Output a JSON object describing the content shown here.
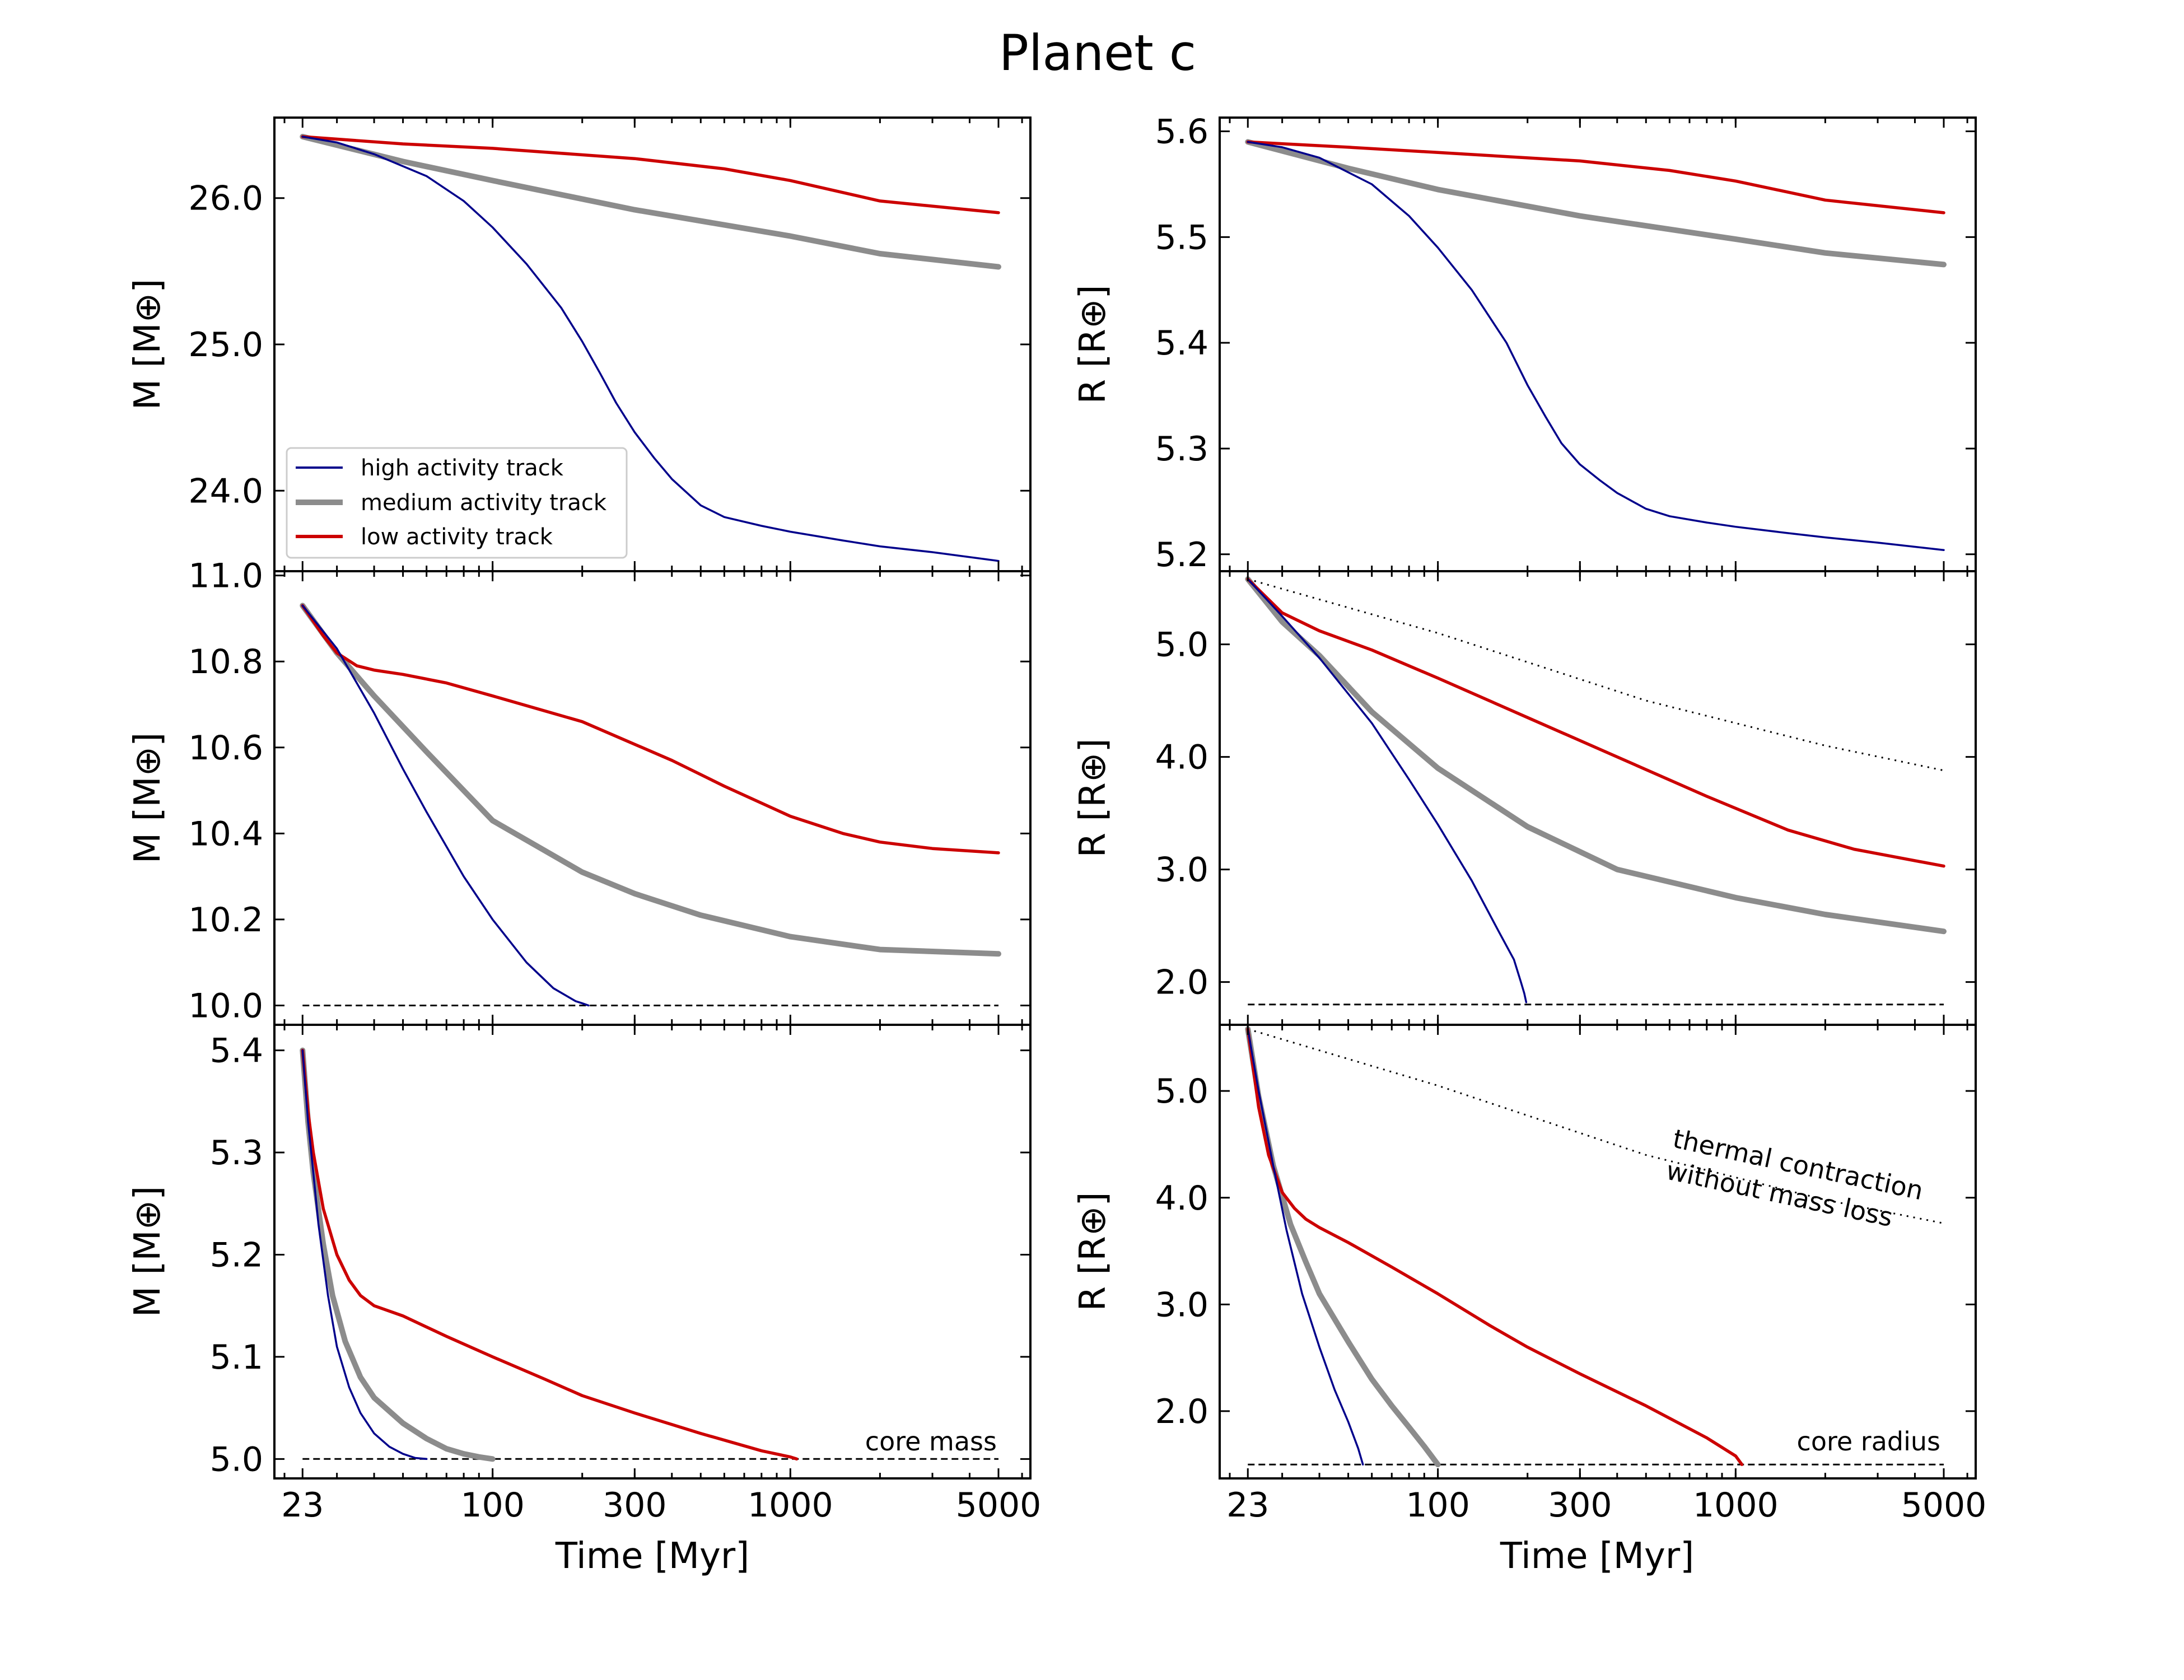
{
  "chart_data": {
    "type": "line",
    "title": "Planet c",
    "xlabel": "Time [Myr]",
    "x_scale": "log",
    "x_ticks": [
      "23",
      "100",
      "300",
      "1000",
      "5000"
    ],
    "x_tick_values": [
      23,
      100,
      300,
      1000,
      5000
    ],
    "xlim": [
      18.5,
      6400
    ],
    "colors": {
      "high": "#00008b",
      "medium": "#8c8c8c",
      "low": "#cc0000",
      "reference": "#000000"
    },
    "legend": {
      "position": "lower-left of top-left panel",
      "entries": [
        {
          "name": "high activity track",
          "color": "#00008b"
        },
        {
          "name": "medium activity track",
          "color": "#8c8c8c"
        },
        {
          "name": "low activity track",
          "color": "#cc0000"
        }
      ]
    },
    "panels": [
      {
        "id": "mass-row1",
        "ylabel": "M [M⊕]",
        "ylim": [
          23.45,
          26.55
        ],
        "y_ticks": [
          "24.0",
          "25.0",
          "26.0"
        ],
        "y_tick_values": [
          24.0,
          25.0,
          26.0
        ],
        "series": [
          {
            "name": "high activity track",
            "x": [
              23,
              30,
              40,
              60,
              80,
              100,
              130,
              170,
              200,
              230,
              260,
              300,
              350,
              400,
              500,
              600,
              800,
              1000,
              1500,
              2000,
              3000,
              5000
            ],
            "y": [
              26.42,
              26.38,
              26.3,
              26.15,
              25.98,
              25.8,
              25.55,
              25.25,
              25.02,
              24.8,
              24.6,
              24.4,
              24.22,
              24.08,
              23.9,
              23.82,
              23.76,
              23.72,
              23.66,
              23.62,
              23.58,
              23.52
            ]
          },
          {
            "name": "medium activity track",
            "x": [
              23,
              50,
              100,
              300,
              1000,
              2000,
              5000
            ],
            "y": [
              26.42,
              26.25,
              26.12,
              25.92,
              25.74,
              25.62,
              25.53
            ]
          },
          {
            "name": "low activity track",
            "x": [
              23,
              50,
              100,
              300,
              600,
              1000,
              2000,
              5000
            ],
            "y": [
              26.42,
              26.37,
              26.34,
              26.27,
              26.2,
              26.12,
              25.98,
              25.9
            ]
          }
        ]
      },
      {
        "id": "radius-row1",
        "ylabel": "R [R⊕]",
        "ylim": [
          5.184,
          5.613
        ],
        "y_ticks": [
          "5.2",
          "5.3",
          "5.4",
          "5.5",
          "5.6"
        ],
        "y_tick_values": [
          5.2,
          5.3,
          5.4,
          5.5,
          5.6
        ],
        "series": [
          {
            "name": "high activity track",
            "x": [
              23,
              30,
              40,
              60,
              80,
              100,
              130,
              170,
              200,
              230,
              260,
              300,
              350,
              400,
              500,
              600,
              800,
              1000,
              1500,
              2000,
              3000,
              5000
            ],
            "y": [
              5.59,
              5.585,
              5.575,
              5.55,
              5.52,
              5.49,
              5.45,
              5.4,
              5.36,
              5.33,
              5.305,
              5.285,
              5.27,
              5.258,
              5.243,
              5.236,
              5.23,
              5.226,
              5.22,
              5.216,
              5.211,
              5.204
            ]
          },
          {
            "name": "medium activity track",
            "x": [
              23,
              50,
              100,
              300,
              1000,
              2000,
              5000
            ],
            "y": [
              5.59,
              5.565,
              5.545,
              5.52,
              5.498,
              5.485,
              5.474
            ]
          },
          {
            "name": "low activity track",
            "x": [
              23,
              50,
              100,
              300,
              600,
              1000,
              2000,
              5000
            ],
            "y": [
              5.59,
              5.585,
              5.58,
              5.572,
              5.563,
              5.553,
              5.535,
              5.523
            ]
          }
        ]
      },
      {
        "id": "mass-row2",
        "ylabel": "M [M⊕]",
        "ylim": [
          9.955,
          11.01
        ],
        "y_ticks": [
          "10.0",
          "10.2",
          "10.4",
          "10.6",
          "10.8",
          "11.0"
        ],
        "y_tick_values": [
          10.0,
          10.2,
          10.4,
          10.6,
          10.8,
          11.0
        ],
        "series": [
          {
            "name": "high activity track",
            "x": [
              23,
              30,
              40,
              50,
              60,
              80,
              100,
              130,
              160,
              190,
              200,
              210
            ],
            "y": [
              10.93,
              10.83,
              10.68,
              10.55,
              10.45,
              10.3,
              10.2,
              10.1,
              10.04,
              10.01,
              10.005,
              10.0
            ]
          },
          {
            "name": "medium activity track",
            "x": [
              23,
              30,
              40,
              60,
              100,
              200,
              300,
              500,
              1000,
              2000,
              5000
            ],
            "y": [
              10.93,
              10.82,
              10.72,
              10.59,
              10.43,
              10.31,
              10.26,
              10.21,
              10.16,
              10.13,
              10.12
            ]
          },
          {
            "name": "low activity track",
            "x": [
              23,
              27,
              30,
              35,
              40,
              50,
              70,
              100,
              200,
              400,
              600,
              1000,
              1500,
              2000,
              3000,
              5000
            ],
            "y": [
              10.93,
              10.86,
              10.82,
              10.79,
              10.78,
              10.77,
              10.75,
              10.72,
              10.66,
              10.57,
              10.51,
              10.44,
              10.4,
              10.38,
              10.365,
              10.355
            ]
          },
          {
            "name": "core mass",
            "style": "dashed",
            "x": [
              23,
              5000
            ],
            "y": [
              10.0,
              10.0
            ]
          }
        ]
      },
      {
        "id": "radius-row2",
        "ylabel": "R [R⊕]",
        "ylim": [
          1.62,
          5.65
        ],
        "y_ticks": [
          "2.0",
          "3.0",
          "4.0",
          "5.0"
        ],
        "y_tick_values": [
          2.0,
          3.0,
          4.0,
          5.0
        ],
        "series": [
          {
            "name": "high activity track",
            "x": [
              23,
              30,
              40,
              60,
              80,
              100,
              130,
              160,
              180,
              190,
              195,
              198
            ],
            "y": [
              5.58,
              5.25,
              4.88,
              4.3,
              3.8,
              3.4,
              2.9,
              2.45,
              2.2,
              2.0,
              1.9,
              1.82
            ]
          },
          {
            "name": "medium activity track",
            "x": [
              23,
              30,
              40,
              60,
              100,
              200,
              400,
              1000,
              2000,
              5000
            ],
            "y": [
              5.58,
              5.2,
              4.9,
              4.4,
              3.9,
              3.38,
              3.0,
              2.75,
              2.6,
              2.45
            ]
          },
          {
            "name": "low activity track",
            "x": [
              23,
              30,
              40,
              60,
              100,
              200,
              400,
              800,
              1500,
              2500,
              5000
            ],
            "y": [
              5.58,
              5.28,
              5.12,
              4.95,
              4.7,
              4.35,
              4.0,
              3.65,
              3.35,
              3.18,
              3.03
            ]
          },
          {
            "name": "thermal contraction without mass loss",
            "style": "dotted",
            "x": [
              23,
              100,
              500,
              2000,
              5000
            ],
            "y": [
              5.58,
              5.1,
              4.5,
              4.1,
              3.88
            ]
          },
          {
            "name": "core radius",
            "style": "dashed",
            "x": [
              23,
              5000
            ],
            "y": [
              1.8,
              1.8
            ]
          }
        ]
      },
      {
        "id": "mass-row3",
        "ylabel": "M [M⊕]",
        "ylim": [
          4.981,
          5.425
        ],
        "y_ticks": [
          "5.0",
          "5.1",
          "5.2",
          "5.3",
          "5.4"
        ],
        "y_tick_values": [
          5.0,
          5.1,
          5.2,
          5.3,
          5.4
        ],
        "series": [
          {
            "name": "high activity track",
            "x": [
              23,
              24,
              25,
              26,
              28,
              30,
              33,
              36,
              40,
              45,
              50,
              55,
              60
            ],
            "y": [
              5.4,
              5.33,
              5.28,
              5.23,
              5.16,
              5.11,
              5.07,
              5.045,
              5.025,
              5.012,
              5.005,
              5.001,
              5.0
            ]
          },
          {
            "name": "medium activity track",
            "x": [
              23,
              24,
              25,
              27,
              29,
              32,
              36,
              40,
              50,
              60,
              70,
              80,
              90,
              100
            ],
            "y": [
              5.4,
              5.33,
              5.28,
              5.21,
              5.16,
              5.115,
              5.08,
              5.06,
              5.035,
              5.02,
              5.01,
              5.005,
              5.002,
              5.0
            ]
          },
          {
            "name": "low activity track",
            "x": [
              23,
              24,
              25,
              27,
              30,
              33,
              36,
              40,
              50,
              70,
              100,
              150,
              200,
              300,
              500,
              800,
              1000,
              1050
            ],
            "y": [
              5.4,
              5.34,
              5.3,
              5.245,
              5.2,
              5.175,
              5.16,
              5.15,
              5.14,
              5.12,
              5.1,
              5.078,
              5.062,
              5.045,
              5.025,
              5.008,
              5.002,
              5.0
            ]
          },
          {
            "name": "core mass",
            "style": "dashed",
            "x": [
              23,
              5000
            ],
            "y": [
              5.0,
              5.0
            ]
          }
        ]
      },
      {
        "id": "radius-row3",
        "ylabel": "R [R⊕]",
        "ylim": [
          1.37,
          5.62
        ],
        "y_ticks": [
          "2.0",
          "3.0",
          "4.0",
          "5.0"
        ],
        "y_tick_values": [
          2.0,
          3.0,
          4.0,
          5.0
        ],
        "series": [
          {
            "name": "high activity track",
            "x": [
              23,
              25,
              28,
              31,
              35,
              40,
              45,
              50,
              54,
              56
            ],
            "y": [
              5.58,
              5.0,
              4.3,
              3.7,
              3.1,
              2.6,
              2.2,
              1.9,
              1.65,
              1.5
            ]
          },
          {
            "name": "medium activity track",
            "x": [
              23,
              25,
              28,
              32,
              36,
              40,
              50,
              60,
              70,
              80,
              90,
              100
            ],
            "y": [
              5.58,
              4.95,
              4.3,
              3.75,
              3.4,
              3.1,
              2.65,
              2.3,
              2.05,
              1.85,
              1.67,
              1.5
            ]
          },
          {
            "name": "low activity track",
            "x": [
              23,
              25,
              27,
              30,
              33,
              36,
              40,
              50,
              70,
              100,
              150,
              200,
              300,
              500,
              800,
              1000,
              1050
            ],
            "y": [
              5.58,
              4.85,
              4.4,
              4.05,
              3.9,
              3.8,
              3.72,
              3.58,
              3.35,
              3.1,
              2.8,
              2.6,
              2.35,
              2.05,
              1.75,
              1.58,
              1.5
            ]
          },
          {
            "name": "thermal contraction without mass loss",
            "style": "dotted",
            "x": [
              23,
              100,
              500,
              2000,
              5000
            ],
            "y": [
              5.58,
              5.05,
              4.4,
              3.98,
              3.76
            ]
          },
          {
            "name": "core radius",
            "style": "dashed",
            "x": [
              23,
              5000
            ],
            "y": [
              1.5,
              1.5
            ]
          }
        ]
      }
    ],
    "annotations": {
      "core_mass": "core mass",
      "core_radius": "core radius",
      "thermal_line1": "thermal contraction",
      "thermal_line2": "without mass loss"
    }
  }
}
